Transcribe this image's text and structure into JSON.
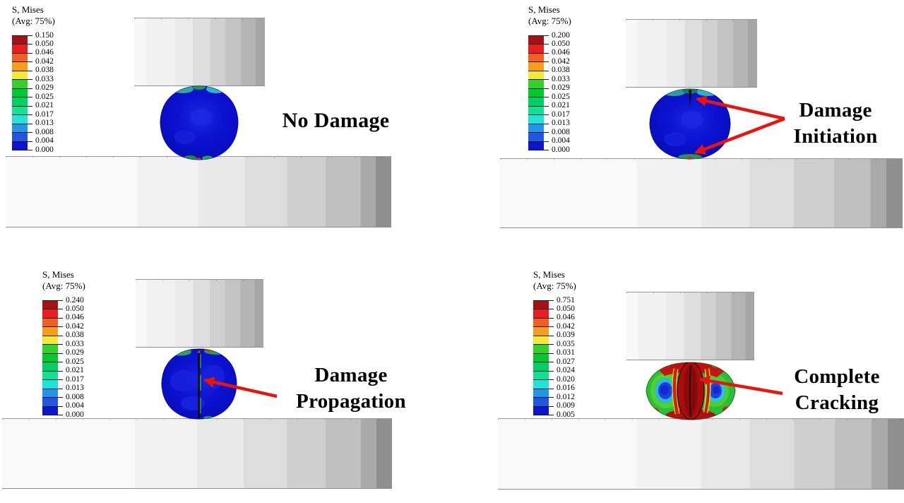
{
  "figure": {
    "description": "Four-stage finite element simulation of a sphere compressed between two platens",
    "background": "#ffffff"
  },
  "colors": {
    "arrow": "#e8150f",
    "annotation_text": "#000000",
    "sphere_blue": "#0b11cf",
    "legend_band_colors": [
      "#a31218",
      "#e81d20",
      "#f2601f",
      "#f79d1c",
      "#f2ea36",
      "#35d02b",
      "#00ca30",
      "#00d063",
      "#12e297",
      "#20e4da",
      "#2196ea",
      "#2256e2",
      "#0c14cd"
    ]
  },
  "panels": [
    {
      "name": "no-damage",
      "legend": {
        "title": "S, Mises",
        "subtitle": "(Avg: 75%)",
        "values": [
          "0.150",
          "0.050",
          "0.046",
          "0.042",
          "0.038",
          "0.033",
          "0.029",
          "0.025",
          "0.021",
          "0.017",
          "0.013",
          "0.008",
          "0.004",
          "0.000"
        ]
      },
      "annotation": {
        "lines": [
          "No Damage"
        ]
      }
    },
    {
      "name": "damage-initiation",
      "legend": {
        "title": "S, Mises",
        "subtitle": "(Avg: 75%)",
        "values": [
          "0.200",
          "0.050",
          "0.046",
          "0.042",
          "0.038",
          "0.033",
          "0.029",
          "0.025",
          "0.021",
          "0.017",
          "0.013",
          "0.008",
          "0.004",
          "0.000"
        ]
      },
      "annotation": {
        "lines": [
          "Damage",
          "Initiation"
        ]
      }
    },
    {
      "name": "damage-propagation",
      "legend": {
        "title": "S, Mises",
        "subtitle": "(Avg: 75%)",
        "values": [
          "0.240",
          "0.050",
          "0.046",
          "0.042",
          "0.038",
          "0.033",
          "0.029",
          "0.025",
          "0.021",
          "0.017",
          "0.013",
          "0.008",
          "0.004",
          "0.000"
        ]
      },
      "annotation": {
        "lines": [
          "Damage",
          "Propagation"
        ]
      }
    },
    {
      "name": "complete-cracking",
      "legend": {
        "title": "S, Mises",
        "subtitle": "(Avg: 75%)",
        "values": [
          "0.751",
          "0.050",
          "0.046",
          "0.042",
          "0.039",
          "0.035",
          "0.031",
          "0.027",
          "0.024",
          "0.020",
          "0.016",
          "0.012",
          "0.009",
          "0.005"
        ]
      },
      "annotation": {
        "lines": [
          "Complete",
          "Cracking"
        ]
      }
    }
  ]
}
